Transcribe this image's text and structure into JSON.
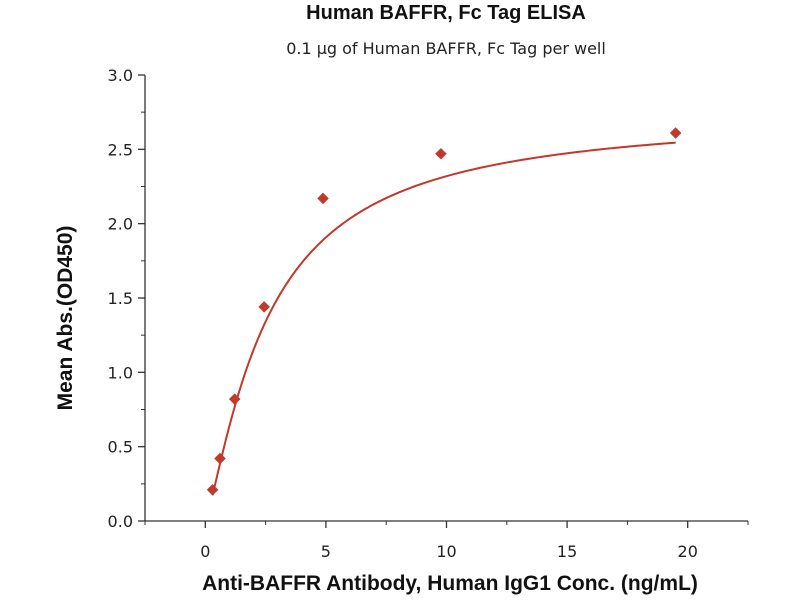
{
  "chart_data": {
    "type": "scatter",
    "title": "Human BAFFR, Fc Tag ELISA",
    "subtitle": "0.1 μg of Human BAFFR, Fc Tag per well",
    "xlabel": "Anti-BAFFR Antibody, Human IgG1 Conc. (ng/mL)",
    "ylabel": "Mean Abs.(OD450)",
    "xlim": [
      -2.5,
      22.5
    ],
    "ylim": [
      0,
      3.0
    ],
    "x_ticks": [
      "0",
      "5",
      "10",
      "15",
      "20"
    ],
    "y_ticks": [
      "0.0",
      "0.5",
      "1.0",
      "1.5",
      "2.0",
      "2.5",
      "3.0"
    ],
    "grid": false,
    "series": [
      {
        "points": [
          {
            "x": 0.3,
            "y": 0.21
          },
          {
            "x": 0.61,
            "y": 0.42
          },
          {
            "x": 1.22,
            "y": 0.82
          },
          {
            "x": 2.44,
            "y": 1.44
          },
          {
            "x": 4.88,
            "y": 2.17
          },
          {
            "x": 9.77,
            "y": 2.47
          },
          {
            "x": 19.5,
            "y": 2.61
          }
        ],
        "marker": "diamond",
        "color": "#c0392b"
      }
    ],
    "fit_curve": {
      "type": "4PL",
      "color": "#c0392b"
    }
  }
}
